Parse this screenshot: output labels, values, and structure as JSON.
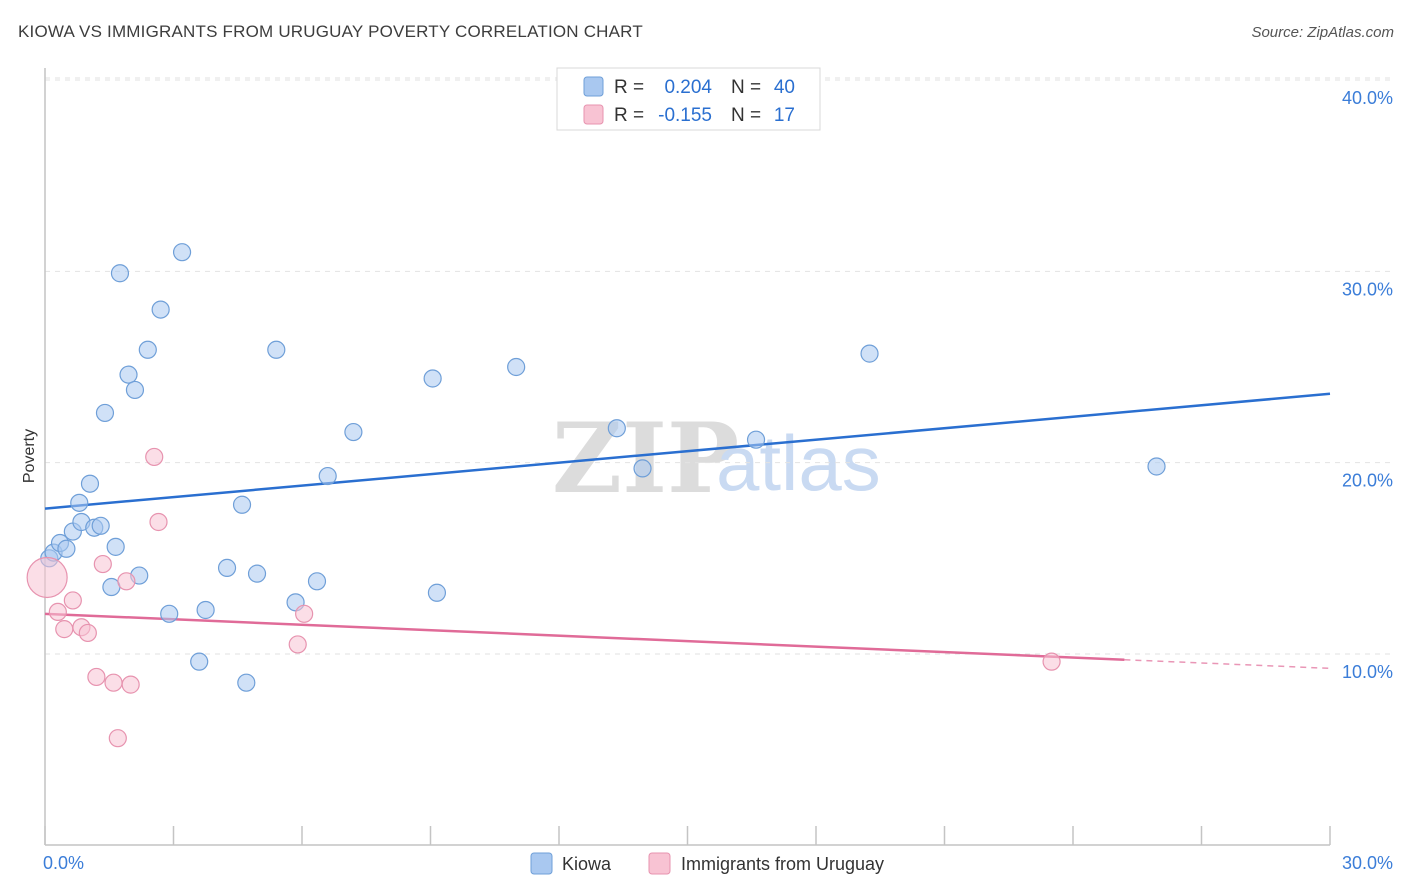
{
  "header": {
    "title": "KIOWA VS IMMIGRANTS FROM URUGUAY POVERTY CORRELATION CHART",
    "source": "Source: ZipAtlas.com"
  },
  "watermark": {
    "zip": "ZIP",
    "atlas": "atlas"
  },
  "chart_data": {
    "type": "scatter",
    "title": "KIOWA VS IMMIGRANTS FROM URUGUAY POVERTY CORRELATION CHART",
    "ylabel": "Poverty",
    "xlabel": "",
    "xlim": [
      0,
      30
    ],
    "ylim": [
      0,
      42
    ],
    "x_tick_labels": [
      {
        "value": 0,
        "label": "0.0%"
      },
      {
        "value": 30,
        "label": "30.0%"
      }
    ],
    "y_tick_labels": [
      {
        "value": 10,
        "label": "10.0%"
      },
      {
        "value": 20,
        "label": "20.0%"
      },
      {
        "value": 30,
        "label": "30.0%"
      },
      {
        "value": 40,
        "label": "40.0%"
      }
    ],
    "grid": "horizontal dashed",
    "legend_placement": "top-center",
    "series": [
      {
        "name": "Kiowa",
        "color": "#a9c8f0",
        "edge": "#6f9fd8",
        "line_color": "#2a6fd0",
        "R": "0.204",
        "N": "40",
        "trend": {
          "x": [
            0,
            30
          ],
          "y": [
            17.6,
            23.6
          ]
        },
        "points": [
          {
            "x": 0.1,
            "y": 15.0
          },
          {
            "x": 0.2,
            "y": 15.3
          },
          {
            "x": 0.35,
            "y": 15.8
          },
          {
            "x": 0.5,
            "y": 15.5
          },
          {
            "x": 0.65,
            "y": 16.4
          },
          {
            "x": 0.8,
            "y": 17.9
          },
          {
            "x": 0.85,
            "y": 16.9
          },
          {
            "x": 1.05,
            "y": 18.9
          },
          {
            "x": 1.15,
            "y": 16.6
          },
          {
            "x": 1.3,
            "y": 16.7
          },
          {
            "x": 1.4,
            "y": 22.6
          },
          {
            "x": 1.55,
            "y": 13.5
          },
          {
            "x": 1.65,
            "y": 15.6
          },
          {
            "x": 1.75,
            "y": 29.9
          },
          {
            "x": 1.95,
            "y": 24.6
          },
          {
            "x": 2.1,
            "y": 23.8
          },
          {
            "x": 2.2,
            "y": 14.1
          },
          {
            "x": 2.4,
            "y": 25.9
          },
          {
            "x": 2.7,
            "y": 28.0
          },
          {
            "x": 2.9,
            "y": 12.1
          },
          {
            "x": 3.2,
            "y": 31.0
          },
          {
            "x": 3.6,
            "y": 9.6
          },
          {
            "x": 3.75,
            "y": 12.3
          },
          {
            "x": 4.25,
            "y": 14.5
          },
          {
            "x": 4.6,
            "y": 17.8
          },
          {
            "x": 4.7,
            "y": 8.5
          },
          {
            "x": 4.95,
            "y": 14.2
          },
          {
            "x": 5.4,
            "y": 25.9
          },
          {
            "x": 5.85,
            "y": 12.7
          },
          {
            "x": 6.35,
            "y": 13.8
          },
          {
            "x": 6.6,
            "y": 19.3
          },
          {
            "x": 7.2,
            "y": 21.6
          },
          {
            "x": 9.05,
            "y": 24.4
          },
          {
            "x": 9.15,
            "y": 13.2
          },
          {
            "x": 11.0,
            "y": 25.0
          },
          {
            "x": 13.35,
            "y": 21.8
          },
          {
            "x": 13.95,
            "y": 19.7
          },
          {
            "x": 16.6,
            "y": 21.2
          },
          {
            "x": 19.25,
            "y": 25.7
          },
          {
            "x": 25.95,
            "y": 19.8
          }
        ]
      },
      {
        "name": "Immigrants from Uruguay",
        "color": "#f8c3d3",
        "edge": "#e793af",
        "line_color": "#e06b98",
        "R": "-0.155",
        "N": "17",
        "trend": {
          "x": [
            0,
            25.2
          ],
          "y": [
            12.1,
            9.7
          ]
        },
        "trend_dashed": {
          "x": [
            25.2,
            30
          ],
          "y": [
            9.7,
            9.25
          ]
        },
        "points": [
          {
            "x": 0.05,
            "y": 14.0,
            "large": true
          },
          {
            "x": 0.3,
            "y": 12.2
          },
          {
            "x": 0.45,
            "y": 11.3
          },
          {
            "x": 0.65,
            "y": 12.8
          },
          {
            "x": 0.85,
            "y": 11.4
          },
          {
            "x": 1.0,
            "y": 11.1
          },
          {
            "x": 1.2,
            "y": 8.8
          },
          {
            "x": 1.35,
            "y": 14.7
          },
          {
            "x": 1.6,
            "y": 8.5
          },
          {
            "x": 1.7,
            "y": 5.6
          },
          {
            "x": 1.9,
            "y": 13.8
          },
          {
            "x": 2.0,
            "y": 8.4
          },
          {
            "x": 2.55,
            "y": 20.3
          },
          {
            "x": 2.65,
            "y": 16.9
          },
          {
            "x": 5.9,
            "y": 10.5
          },
          {
            "x": 6.05,
            "y": 12.1
          },
          {
            "x": 23.5,
            "y": 9.6
          }
        ]
      }
    ]
  }
}
